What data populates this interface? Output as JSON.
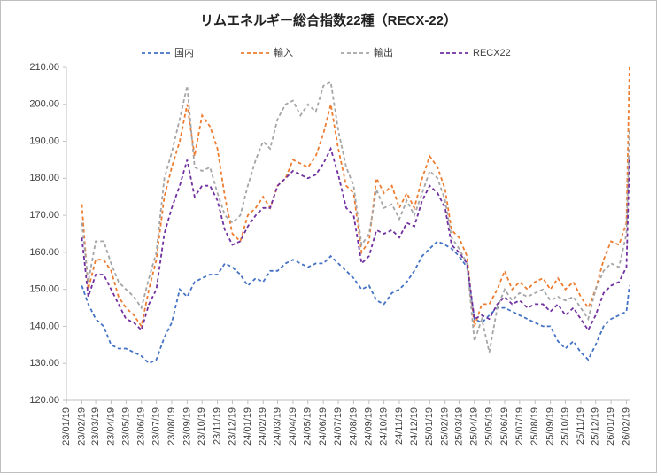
{
  "chart_data": {
    "type": "line",
    "title": "リムエネルギー総合指数22種（RECX-22）",
    "x": [
      "23/02/19",
      "23/03/04",
      "23/03/19",
      "23/04/04",
      "23/04/19",
      "23/05/04",
      "23/05/19",
      "23/06/04",
      "23/06/19",
      "23/07/04",
      "23/07/19",
      "23/08/04",
      "23/08/19",
      "23/09/04",
      "23/09/19",
      "23/10/04",
      "23/10/19",
      "23/11/04",
      "23/11/19",
      "23/12/04",
      "23/12/19",
      "24/01/04",
      "24/01/19",
      "24/02/04",
      "24/02/19",
      "24/03/04",
      "24/03/19",
      "24/04/04",
      "24/04/19",
      "24/05/04",
      "24/05/19",
      "24/06/04",
      "24/06/19",
      "24/07/04",
      "24/07/19",
      "24/08/04",
      "24/08/19",
      "24/09/04",
      "24/09/19",
      "24/10/04",
      "24/10/19",
      "24/11/04",
      "24/11/19",
      "24/12/04",
      "24/12/19",
      "25/01/04",
      "25/01/19",
      "25/02/04",
      "25/02/19",
      "25/03/04",
      "25/03/19",
      "25/04/04",
      "25/04/19",
      "25/05/04",
      "25/05/19",
      "25/06/04",
      "25/06/19",
      "25/07/04",
      "25/07/19",
      "25/08/04",
      "25/08/19",
      "25/09/04",
      "25/09/19",
      "25/10/04",
      "25/10/19",
      "25/11/04",
      "25/11/19",
      "25/12/04",
      "25/12/19",
      "26/01/04",
      "26/01/19",
      "26/02/04",
      "26/02/19",
      "26/02/25"
    ],
    "series": [
      {
        "name": "国内",
        "color": "#4472c4",
        "values": [
          151,
          146,
          142,
          140,
          135,
          134,
          134,
          133,
          132,
          130,
          131,
          137,
          141,
          150,
          148,
          152,
          153,
          154,
          154,
          157,
          156,
          154,
          151,
          153,
          152,
          155,
          155,
          157,
          158,
          157,
          156,
          157,
          157,
          159,
          157,
          155,
          153,
          150,
          151,
          147,
          146,
          149,
          150,
          152,
          155,
          159,
          161,
          163,
          162,
          161,
          159,
          156,
          142,
          141,
          143,
          145,
          145,
          144,
          143,
          142,
          141,
          140,
          140,
          136,
          134,
          136,
          133,
          131,
          135,
          140,
          142,
          143,
          144,
          151
        ]
      },
      {
        "name": "輸入",
        "color": "#ed7d31",
        "values": [
          173,
          150,
          158,
          158,
          155,
          148,
          145,
          143,
          140,
          150,
          158,
          175,
          183,
          190,
          200,
          186,
          197,
          194,
          188,
          175,
          165,
          163,
          170,
          172,
          175,
          172,
          178,
          180,
          185,
          184,
          183,
          186,
          192,
          200,
          188,
          178,
          176,
          160,
          163,
          180,
          176,
          178,
          172,
          176,
          172,
          180,
          186,
          183,
          177,
          166,
          164,
          159,
          140,
          146,
          146,
          150,
          155,
          150,
          152,
          150,
          152,
          153,
          150,
          153,
          150,
          152,
          148,
          145,
          150,
          158,
          163,
          162,
          168,
          210
        ]
      },
      {
        "name": "輸出",
        "color": "#a5a5a5",
        "values": [
          168,
          152,
          163,
          163,
          157,
          152,
          150,
          148,
          145,
          153,
          160,
          180,
          187,
          196,
          205,
          183,
          182,
          183,
          176,
          170,
          168,
          170,
          178,
          185,
          190,
          188,
          196,
          200,
          201,
          197,
          200,
          198,
          205,
          206,
          193,
          183,
          178,
          162,
          165,
          177,
          172,
          173,
          169,
          174,
          170,
          176,
          182,
          180,
          174,
          164,
          161,
          157,
          136,
          142,
          133,
          145,
          150,
          147,
          149,
          148,
          149,
          150,
          147,
          148,
          147,
          148,
          145,
          142,
          150,
          155,
          157,
          156,
          165,
          193
        ]
      },
      {
        "name": "RECX22",
        "color": "#7030a0",
        "values": [
          164,
          148,
          154,
          154,
          150,
          146,
          142,
          141,
          139,
          146,
          150,
          165,
          172,
          178,
          185,
          175,
          178,
          178,
          174,
          166,
          162,
          163,
          167,
          170,
          172,
          172,
          178,
          180,
          182,
          181,
          180,
          181,
          184,
          188,
          181,
          172,
          170,
          157,
          159,
          166,
          165,
          166,
          164,
          168,
          167,
          174,
          178,
          176,
          172,
          162,
          160,
          157,
          142,
          143,
          142,
          146,
          148,
          146,
          147,
          145,
          146,
          146,
          144,
          146,
          143,
          145,
          142,
          139,
          143,
          149,
          151,
          152,
          156,
          185
        ]
      }
    ],
    "xlim": [
      "23/01/19",
      "26/02/27"
    ],
    "xticks": [
      "23/01/19",
      "23/02/19",
      "23/03/19",
      "23/04/19",
      "23/05/19",
      "23/06/19",
      "23/07/19",
      "23/08/19",
      "23/09/19",
      "23/10/19",
      "23/11/19",
      "23/12/19",
      "24/01/19",
      "24/02/19",
      "24/03/19",
      "24/04/19",
      "24/05/19",
      "24/06/19",
      "24/07/19",
      "24/08/19",
      "24/09/19",
      "24/10/19",
      "24/11/19",
      "24/12/19",
      "25/01/19",
      "25/02/19",
      "25/03/19",
      "25/04/19",
      "25/05/19",
      "25/06/19",
      "25/07/19",
      "25/08/19",
      "25/09/19",
      "25/10/19",
      "25/11/19",
      "25/12/19",
      "26/01/19",
      "26/02/19"
    ],
    "ylim": [
      120,
      210
    ],
    "yticks": [
      {
        "value": 120,
        "label": "120.00"
      },
      {
        "value": 130,
        "label": "130.00"
      },
      {
        "value": 140,
        "label": "140.00"
      },
      {
        "value": 150,
        "label": "150.00"
      },
      {
        "value": 160,
        "label": "160.00"
      },
      {
        "value": 170,
        "label": "170.00"
      },
      {
        "value": 180,
        "label": "180.00"
      },
      {
        "value": 190,
        "label": "190.00"
      },
      {
        "value": 200,
        "label": "200.00"
      },
      {
        "value": 210,
        "label": "210.00"
      }
    ],
    "grid": false,
    "legend": "top",
    "line_style": "dashed"
  }
}
